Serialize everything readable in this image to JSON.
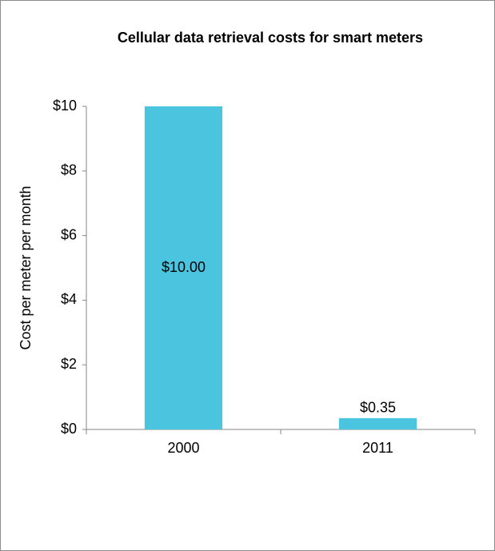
{
  "chart_data": {
    "type": "bar",
    "title": "Cellular data retrieval costs for smart meters",
    "y_label": "Cost per meter per month",
    "categories": [
      "2000",
      "2011"
    ],
    "values": [
      10,
      0.35
    ],
    "value_labels": [
      "$10.00",
      "$0.35"
    ],
    "color": "#4bc4e0",
    "ylim": [
      0,
      10
    ],
    "yticks": [
      {
        "value": 0,
        "label": "$0"
      },
      {
        "value": 2,
        "label": "$2"
      },
      {
        "value": 4,
        "label": "$4"
      },
      {
        "value": 6,
        "label": "$6"
      },
      {
        "value": 8,
        "label": "$8"
      },
      {
        "value": 10,
        "label": "$10"
      }
    ]
  }
}
